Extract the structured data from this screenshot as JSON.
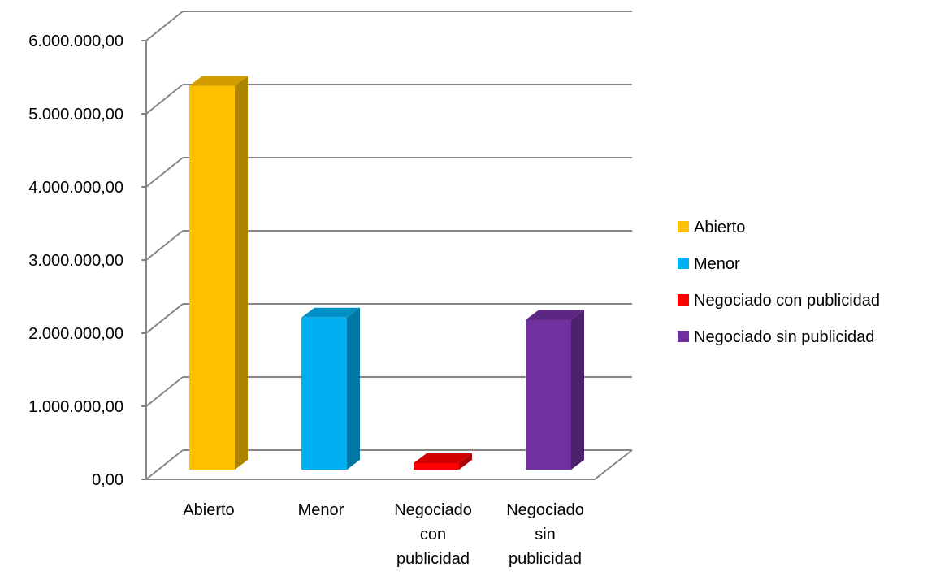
{
  "chart_data": {
    "type": "bar",
    "style": "3d-column",
    "categories": [
      [
        "Abierto"
      ],
      [
        "Menor"
      ],
      [
        "Negociado",
        "con",
        "publicidad"
      ],
      [
        "Negociado",
        "sin",
        "publicidad"
      ]
    ],
    "series": [
      {
        "name": "Abierto",
        "value": 5250000,
        "color": "#FFC000"
      },
      {
        "name": "Menor",
        "value": 2080000,
        "color": "#00B0F0"
      },
      {
        "name": "Negociado con publicidad",
        "value": 80000,
        "color": "#FF0000"
      },
      {
        "name": "Negociado sin publicidad",
        "value": 2050000,
        "color": "#7030A0"
      }
    ],
    "y_ticks": [
      "0,00",
      "1.000.000,00",
      "2.000.000,00",
      "3.000.000,00",
      "4.000.000,00",
      "5.000.000,00",
      "6.000.000,00"
    ],
    "ylim": [
      0,
      6000000
    ],
    "grid": true,
    "legend_position": "right",
    "gridline_color": "#868686"
  }
}
